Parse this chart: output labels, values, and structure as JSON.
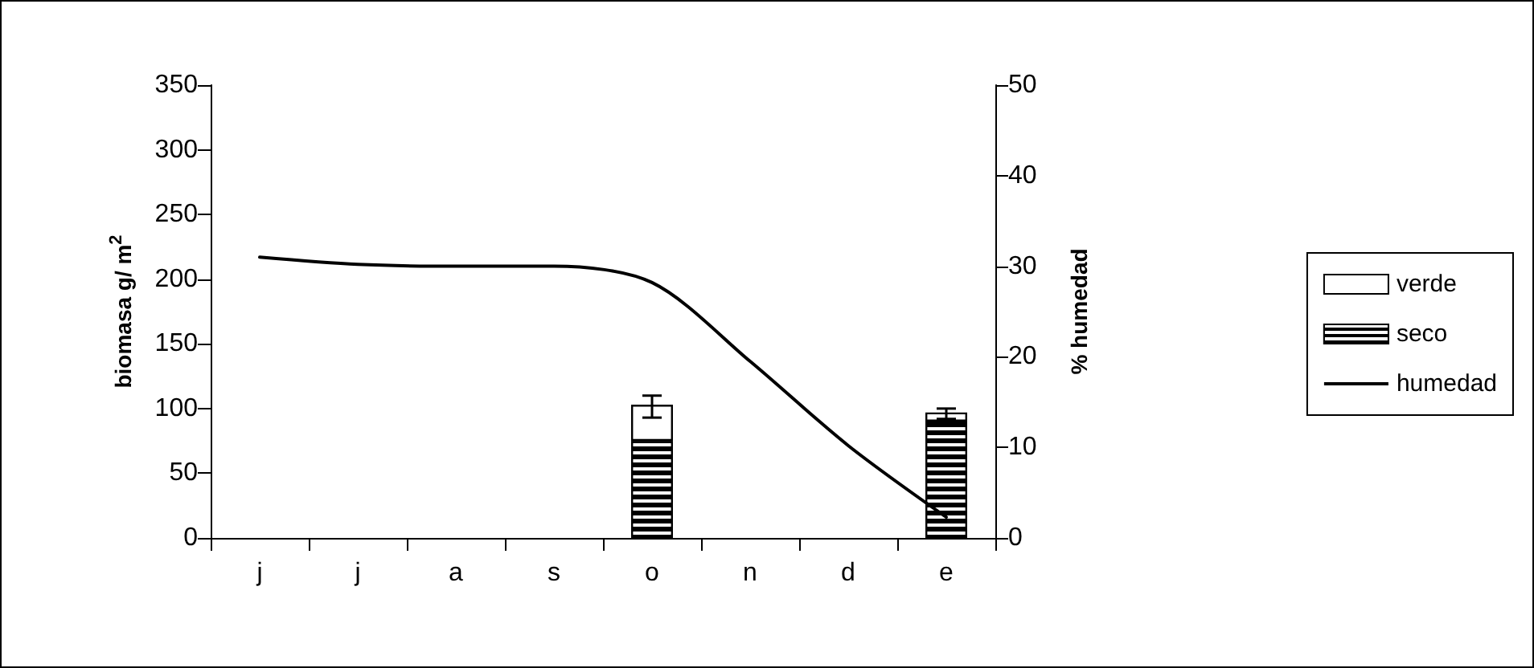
{
  "chart_data": {
    "type": "bar",
    "stacked": true,
    "categories": [
      "j",
      "j",
      "a",
      "s",
      "o",
      "n",
      "d",
      "e"
    ],
    "ylabel": "biomasa g/ m$^{2}$",
    "y2label": "% humedad",
    "ylim": [
      0,
      350
    ],
    "yticks": [
      0,
      50,
      100,
      150,
      200,
      250,
      300,
      350
    ],
    "y2lim": [
      0,
      50
    ],
    "y2ticks": [
      0,
      10,
      20,
      30,
      40,
      50
    ],
    "grid": false,
    "legend": "right",
    "marker": "none",
    "line_style": "solid",
    "series": [
      {
        "name": "seco",
        "color": "#000000",
        "values": [
          null,
          null,
          null,
          null,
          75,
          null,
          null,
          90
        ]
      },
      {
        "name": "verde",
        "color": "#ffffff",
        "values": [
          null,
          null,
          null,
          null,
          28,
          null,
          null,
          7
        ],
        "errors": [
          null,
          null,
          null,
          null,
          [
            93,
            110
          ],
          null,
          null,
          [
            92,
            100
          ]
        ]
      },
      {
        "name": "humedad",
        "type": "line",
        "axis": "y2",
        "color": "#000000",
        "values": [
          31,
          30.2,
          30,
          30,
          28.2,
          19.5,
          10.2,
          2.3
        ]
      }
    ]
  }
}
